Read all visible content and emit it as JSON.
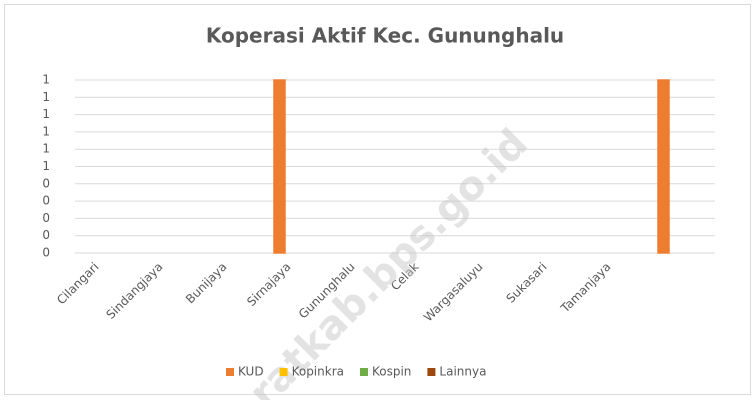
{
  "chart_data": {
    "type": "bar",
    "title": "Koperasi Aktif Kec. Gununghalu",
    "watermark": "ratkab.bps.go.id",
    "categories": [
      "Cilangari",
      "Sindangjaya",
      "Bunijaya",
      "Sirnajaya",
      "Gununghalu",
      "Celak",
      "Wargasaluyu",
      "Sukasari",
      "Tamanjaya",
      null
    ],
    "series": [
      {
        "name": "KUD",
        "color": "#ed7d31",
        "values": [
          0,
          0,
          0,
          1,
          0,
          0,
          0,
          0,
          0,
          1
        ]
      },
      {
        "name": "Kopinkra",
        "color": "#ffc000",
        "values": [
          0,
          0,
          0,
          0,
          0,
          0,
          0,
          0,
          0,
          0
        ]
      },
      {
        "name": "Kospin",
        "color": "#70ad47",
        "values": [
          0,
          0,
          0,
          0,
          0,
          0,
          0,
          0,
          0,
          0
        ]
      },
      {
        "name": "Lainnya",
        "color": "#9e480e",
        "values": [
          0,
          0,
          0,
          0,
          0,
          0,
          0,
          0,
          0,
          0
        ]
      }
    ],
    "ylim": [
      0,
      1
    ],
    "yticks": [
      0,
      {
        "value": 0.1,
        "label": "0"
      },
      {
        "value": 0.2,
        "label": "0"
      },
      {
        "value": 0.3,
        "label": "0"
      },
      {
        "value": 0.4,
        "label": "0"
      },
      {
        "value": 0.5,
        "label": "1"
      },
      {
        "value": 0.6,
        "label": "1"
      },
      {
        "value": 0.7,
        "label": "1"
      },
      {
        "value": 0.8,
        "label": "1"
      },
      {
        "value": 0.9,
        "label": "1"
      },
      1
    ],
    "grid": true,
    "legend": "bottom"
  }
}
